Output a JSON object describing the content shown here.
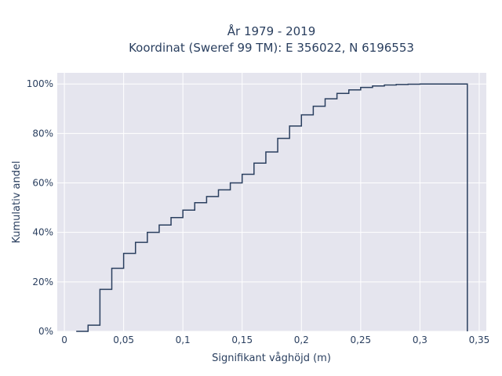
{
  "chart_data": {
    "type": "line",
    "title_line1": "År 1979 - 2019",
    "title_line2": "Koordinat (Sweref 99 TM): E 356022, N 6196553",
    "xlabel": "Signifikant våghöjd (m)",
    "ylabel": "Kumulativ andel",
    "xlim": [
      -0.006,
      0.356
    ],
    "ylim": [
      0,
      1.045
    ],
    "x_ticks": [
      0,
      0.05,
      0.1,
      0.15,
      0.2,
      0.25,
      0.3,
      0.35
    ],
    "x_tick_labels": [
      "0",
      "0,05",
      "0,1",
      "0,15",
      "0,2",
      "0,25",
      "0,3",
      "0,35"
    ],
    "y_ticks": [
      0,
      0.2,
      0.4,
      0.6,
      0.8,
      1.0
    ],
    "y_tick_labels": [
      "0%",
      "20%",
      "40%",
      "60%",
      "80%",
      "100%"
    ],
    "grid": true,
    "line_color": "#2a3f5f",
    "plot_bg": "#e5e5ee",
    "series": [
      {
        "step": "post",
        "x": [
          0.01,
          0.02,
          0.03,
          0.04,
          0.05,
          0.06,
          0.07,
          0.08,
          0.09,
          0.1,
          0.11,
          0.12,
          0.13,
          0.14,
          0.15,
          0.16,
          0.17,
          0.18,
          0.19,
          0.2,
          0.21,
          0.22,
          0.23,
          0.24,
          0.25,
          0.26,
          0.27,
          0.28,
          0.29,
          0.3,
          0.31,
          0.32,
          0.33,
          0.34
        ],
        "y": [
          0.0,
          0.025,
          0.17,
          0.255,
          0.315,
          0.36,
          0.4,
          0.43,
          0.46,
          0.49,
          0.52,
          0.545,
          0.572,
          0.6,
          0.635,
          0.68,
          0.725,
          0.78,
          0.83,
          0.875,
          0.91,
          0.94,
          0.962,
          0.976,
          0.986,
          0.992,
          0.996,
          0.998,
          0.999,
          1.0,
          1.0,
          1.0,
          1.0,
          0.0
        ]
      }
    ]
  }
}
